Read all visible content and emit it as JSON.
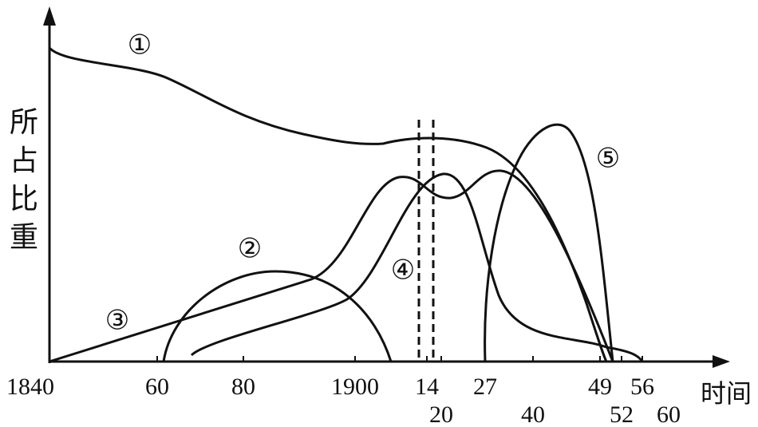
{
  "y_axis_label": [
    "所",
    "占",
    "比",
    "重"
  ],
  "x_axis_label": "时间",
  "x_ticks_upper": [
    "1840",
    "60",
    "80",
    "1900",
    "14",
    "27",
    "49",
    "56"
  ],
  "x_ticks_lower": [
    "20",
    "40",
    "52",
    "60"
  ],
  "curve_labels": [
    "①",
    "②",
    "③",
    "④",
    "⑤"
  ]
}
